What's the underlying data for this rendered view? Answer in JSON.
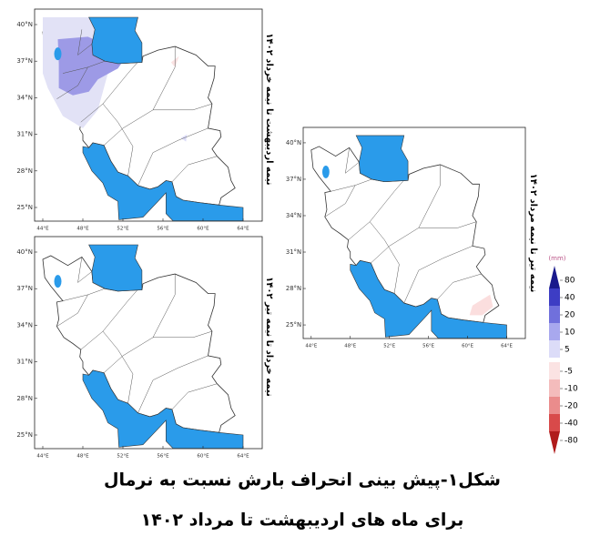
{
  "figure": {
    "caption": [
      "شکل۱-پیش بینی انحراف بارش نسبت به نرمال",
      "برای ماه های اردیبهشت تا مرداد ۱۴۰۲"
    ]
  },
  "panels": [
    {
      "title": "نیمه اردیبهشت تا نیمه خرداد ۱۴۰۲"
    },
    {
      "title": "نیمه خرداد تا نیمه تیر ۱۴۰۲"
    },
    {
      "title": "نیمه تیر تا نیمه مرداد ۱۴۰۲"
    }
  ],
  "map_axes": {
    "lat_labels": [
      "40°N",
      "37°N",
      "34°N",
      "31°N",
      "28°N",
      "25°N"
    ],
    "lon_labels": [
      "44°E",
      "48°E",
      "52°E",
      "56°E",
      "60°E",
      "64°E"
    ]
  },
  "colorbar": {
    "unit": "(mm)",
    "ticks": [
      80,
      40,
      20,
      10,
      5,
      -5,
      -10,
      -20,
      -40,
      -80
    ],
    "colors": [
      "#1a1a8c",
      "#3d3dc4",
      "#7070dc",
      "#a8a8ee",
      "#dcdcf8",
      "#fbe3e3",
      "#f4bcbc",
      "#ea8c8c",
      "#d84a4a",
      "#b01c1c"
    ]
  }
}
